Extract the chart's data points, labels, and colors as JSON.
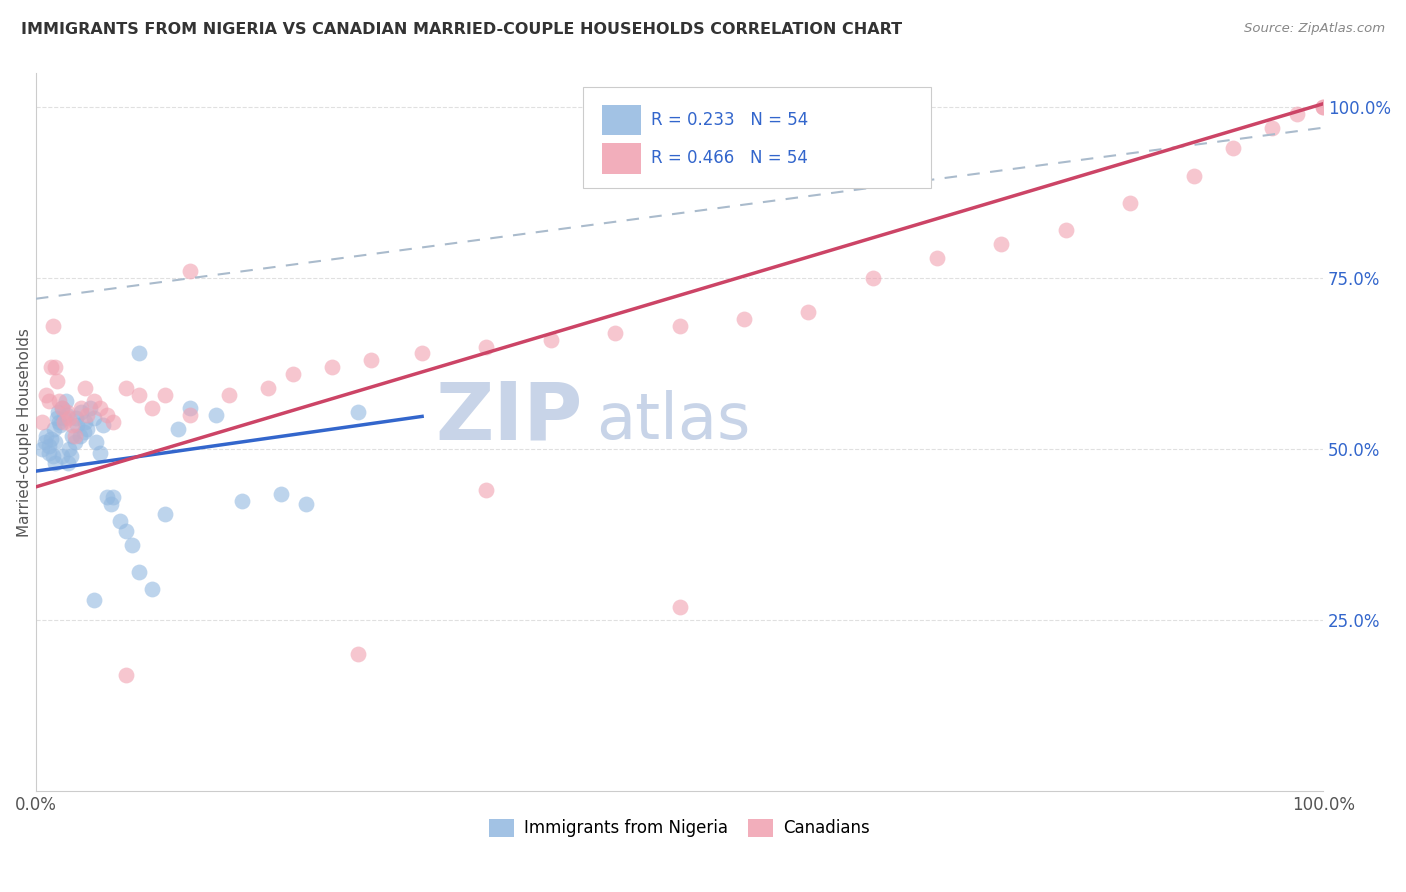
{
  "title": "IMMIGRANTS FROM NIGERIA VS CANADIAN MARRIED-COUPLE HOUSEHOLDS CORRELATION CHART",
  "source": "Source: ZipAtlas.com",
  "ylabel": "Married-couple Households",
  "xlim": [
    0.0,
    1.0
  ],
  "ylim": [
    0.0,
    1.05
  ],
  "yticks": [
    0.25,
    0.5,
    0.75,
    1.0
  ],
  "ytick_labels": [
    "25.0%",
    "50.0%",
    "75.0%",
    "100.0%"
  ],
  "legend_blue_label": "R = 0.233   N = 54",
  "legend_pink_label": "R = 0.466   N = 54",
  "blue_scatter_color": "#92b8e0",
  "pink_scatter_color": "#f0a0b0",
  "blue_line_color": "#3366cc",
  "pink_line_color": "#cc4466",
  "dashed_line_color": "#aabbcc",
  "legend_text_color": "#3366cc",
  "title_color": "#333333",
  "source_color": "#888888",
  "watermark_zip_color": "#c8d4e8",
  "watermark_atlas_color": "#c8d4e8",
  "ylabel_color": "#555555",
  "ytick_color": "#3366cc",
  "xtick_color": "#555555",
  "grid_color": "#dddddd",
  "background_color": "#ffffff",
  "blue_x": [
    0.005,
    0.007,
    0.008,
    0.01,
    0.01,
    0.012,
    0.013,
    0.014,
    0.015,
    0.015,
    0.016,
    0.017,
    0.018,
    0.019,
    0.02,
    0.02,
    0.022,
    0.023,
    0.024,
    0.025,
    0.026,
    0.027,
    0.028,
    0.03,
    0.031,
    0.032,
    0.034,
    0.035,
    0.037,
    0.038,
    0.04,
    0.042,
    0.045,
    0.047,
    0.05,
    0.052,
    0.055,
    0.058,
    0.06,
    0.065,
    0.07,
    0.075,
    0.08,
    0.09,
    0.1,
    0.11,
    0.12,
    0.14,
    0.16,
    0.19,
    0.21,
    0.25,
    0.08,
    0.045
  ],
  "blue_y": [
    0.5,
    0.51,
    0.52,
    0.505,
    0.495,
    0.515,
    0.49,
    0.53,
    0.48,
    0.51,
    0.545,
    0.555,
    0.54,
    0.535,
    0.56,
    0.49,
    0.545,
    0.57,
    0.55,
    0.48,
    0.5,
    0.49,
    0.52,
    0.51,
    0.545,
    0.535,
    0.52,
    0.555,
    0.525,
    0.54,
    0.53,
    0.56,
    0.545,
    0.51,
    0.495,
    0.535,
    0.43,
    0.42,
    0.43,
    0.395,
    0.38,
    0.36,
    0.32,
    0.295,
    0.405,
    0.53,
    0.56,
    0.55,
    0.425,
    0.435,
    0.42,
    0.555,
    0.64,
    0.28
  ],
  "pink_x": [
    0.005,
    0.008,
    0.01,
    0.012,
    0.013,
    0.015,
    0.016,
    0.018,
    0.02,
    0.022,
    0.024,
    0.026,
    0.028,
    0.03,
    0.035,
    0.038,
    0.04,
    0.045,
    0.05,
    0.055,
    0.06,
    0.07,
    0.08,
    0.09,
    0.1,
    0.12,
    0.15,
    0.18,
    0.2,
    0.23,
    0.26,
    0.3,
    0.35,
    0.4,
    0.45,
    0.5,
    0.55,
    0.6,
    0.65,
    0.7,
    0.75,
    0.8,
    0.85,
    0.9,
    0.93,
    0.96,
    0.98,
    1.0,
    1.0,
    0.35,
    0.12,
    0.5,
    0.25,
    0.07
  ],
  "pink_y": [
    0.54,
    0.58,
    0.57,
    0.62,
    0.68,
    0.62,
    0.6,
    0.57,
    0.56,
    0.54,
    0.555,
    0.545,
    0.535,
    0.52,
    0.56,
    0.59,
    0.55,
    0.57,
    0.56,
    0.55,
    0.54,
    0.59,
    0.58,
    0.56,
    0.58,
    0.55,
    0.58,
    0.59,
    0.61,
    0.62,
    0.63,
    0.64,
    0.65,
    0.66,
    0.67,
    0.68,
    0.69,
    0.7,
    0.75,
    0.78,
    0.8,
    0.82,
    0.86,
    0.9,
    0.94,
    0.97,
    0.99,
    1.0,
    1.0,
    0.44,
    0.76,
    0.27,
    0.2,
    0.17
  ],
  "blue_line_x0": 0.0,
  "blue_line_x1": 0.3,
  "blue_line_y0": 0.468,
  "blue_line_y1": 0.548,
  "pink_line_x0": 0.0,
  "pink_line_x1": 1.0,
  "pink_line_y0": 0.445,
  "pink_line_y1": 1.005,
  "dash_line_x0": 0.0,
  "dash_line_x1": 1.0,
  "dash_line_y0": 0.72,
  "dash_line_y1": 0.97
}
